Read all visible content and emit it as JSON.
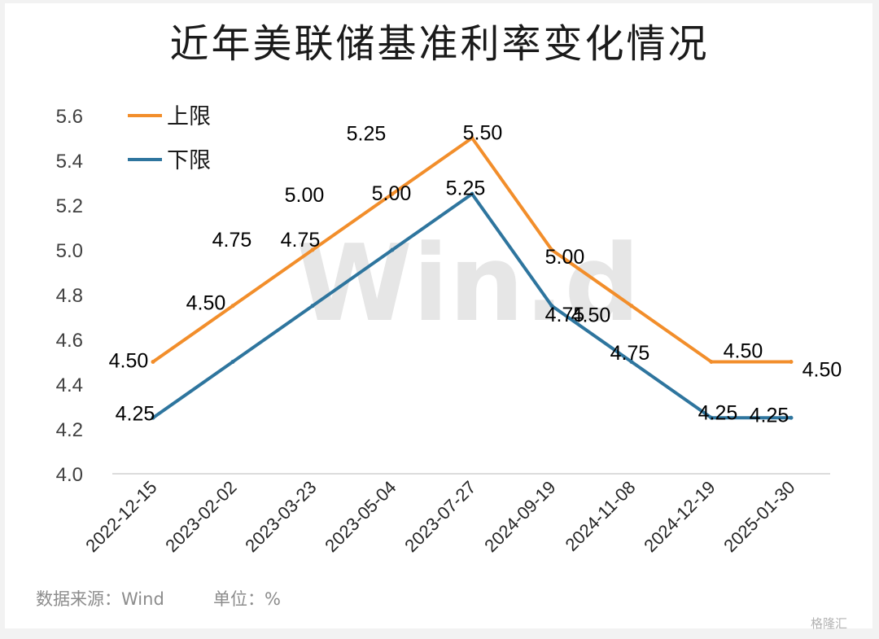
{
  "chart_data": {
    "type": "line",
    "title": "近年美联储基准利率变化情况",
    "categories": [
      "2022-12-15",
      "2023-02-02",
      "2023-03-23",
      "2023-05-04",
      "2023-07-27",
      "2024-09-19",
      "2024-11-08",
      "2024-12-19",
      "2025-01-30"
    ],
    "series": [
      {
        "name": "上限",
        "values": [
          4.5,
          4.75,
          5.0,
          5.25,
          5.5,
          5.0,
          4.75,
          4.5,
          4.5
        ],
        "labels": [
          "4.50",
          "4.75",
          "5.00",
          "5.25",
          "5.50",
          "5.00",
          "4.75",
          "4.50",
          "4.50"
        ],
        "color": "#f28e2b"
      },
      {
        "name": "下限",
        "values": [
          4.25,
          4.5,
          4.75,
          5.0,
          5.25,
          4.75,
          4.5,
          4.25,
          4.25
        ],
        "labels": [
          "4.25",
          "4.50",
          "4.75",
          "5.00",
          "5.25",
          "4.75",
          "4.50",
          "4.25",
          "4.25"
        ],
        "color": "#2e759e"
      }
    ],
    "ylim": [
      4.0,
      5.6
    ],
    "yticks": [
      "4.0",
      "4.2",
      "4.4",
      "4.6",
      "4.8",
      "5.0",
      "5.2",
      "5.4",
      "5.6"
    ],
    "legend": "top-left",
    "grid": false,
    "watermark": "Win.d"
  },
  "footer": {
    "source": "数据来源：Wind",
    "unit": "单位：%",
    "brand": "格隆汇"
  }
}
